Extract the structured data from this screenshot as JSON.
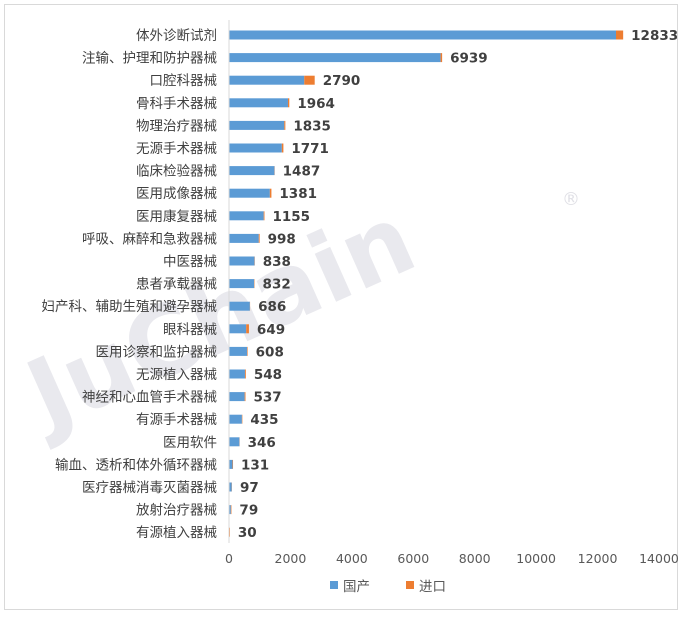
{
  "chart_data": {
    "type": "bar",
    "orientation": "horizontal",
    "stacked": true,
    "categories": [
      "体外诊断试剂",
      "注输、护理和防护器械",
      "口腔科器械",
      "骨科手术器械",
      "物理治疗器械",
      "无源手术器械",
      "临床检验器械",
      "医用成像器械",
      "医用康复器械",
      "呼吸、麻醉和急救器械",
      "中医器械",
      "患者承载器械",
      "妇产科、辅助生殖和避孕器械",
      "眼科器械",
      "医用诊察和监护器械",
      "无源植入器械",
      "神经和心血管手术器械",
      "有源手术器械",
      "医用软件",
      "输血、透析和体外循环器械",
      "医疗器械消毒灭菌器械",
      "放射治疗器械",
      "有源植入器械"
    ],
    "series": [
      {
        "name": "国产",
        "color": "#5b9bd5",
        "values": [
          12600,
          6890,
          2450,
          1920,
          1800,
          1720,
          1480,
          1330,
          1130,
          970,
          830,
          820,
          680,
          560,
          590,
          520,
          510,
          420,
          340,
          115,
          90,
          60,
          10
        ]
      },
      {
        "name": "进口",
        "color": "#ed7d31",
        "values": [
          233,
          49,
          340,
          44,
          35,
          51,
          7,
          51,
          25,
          28,
          8,
          12,
          6,
          89,
          18,
          28,
          27,
          15,
          6,
          16,
          7,
          19,
          20
        ]
      }
    ],
    "totals": [
      "12833",
      "6939",
      "2790",
      "1964",
      "1835",
      "1771",
      "1487",
      "1381",
      "1155",
      "998",
      "838",
      "832",
      "686",
      "649",
      "608",
      "548",
      "537",
      "435",
      "346",
      "131",
      "97",
      "79",
      "30"
    ],
    "xlim": [
      0,
      14000
    ],
    "x_ticks": [
      "0",
      "2000",
      "4000",
      "6000",
      "8000",
      "10000",
      "12000",
      "14000"
    ],
    "x_tick_values": [
      0,
      2000,
      4000,
      6000,
      8000,
      10000,
      12000,
      14000
    ],
    "legend": {
      "position": "bottom",
      "items": [
        "国产",
        "进口"
      ]
    },
    "grid": false
  },
  "watermark": {
    "text": "JuChain",
    "mark": "®"
  }
}
